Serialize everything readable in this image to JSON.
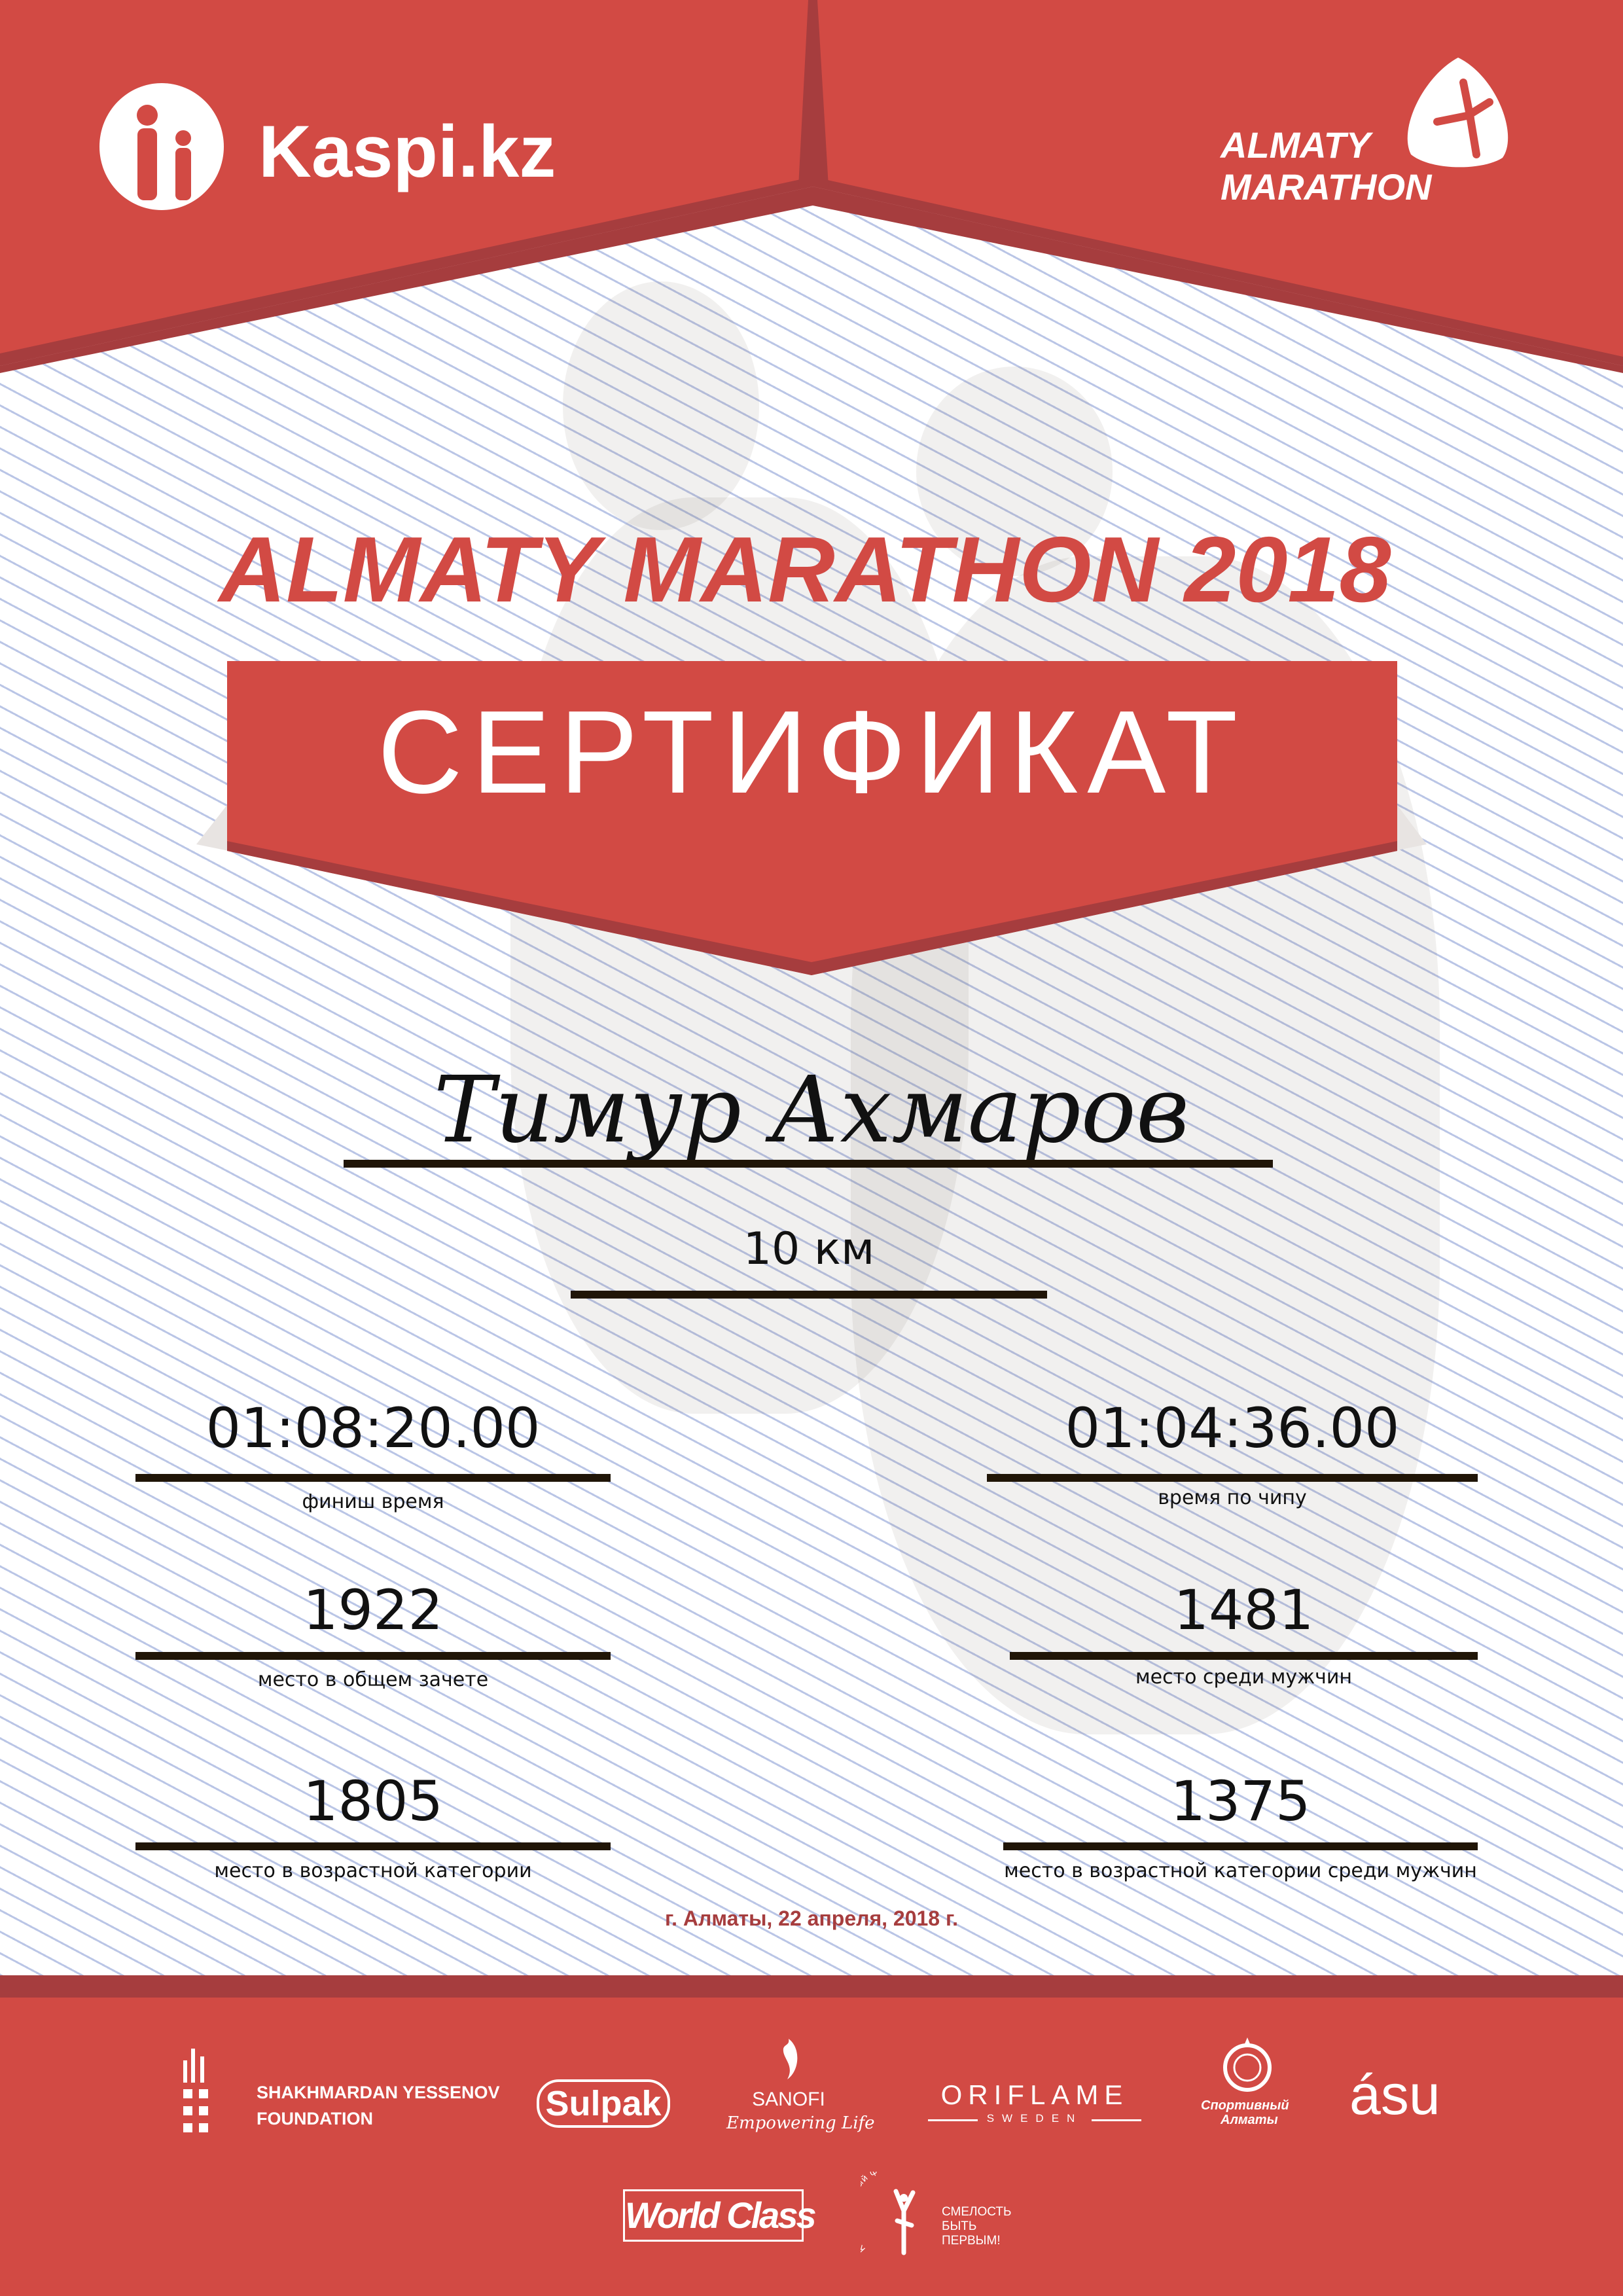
{
  "colors": {
    "brand_red": "#d24a44",
    "dark_red": "#a63d3e",
    "text": "#111111",
    "rule": "#201507"
  },
  "header": {
    "left_logo": {
      "text": "Kaspi.kz",
      "icon": "kaspi-people-icon"
    },
    "right_logo": {
      "line1": "ALMATY",
      "line2": "MARATHON",
      "icon": "runner-icon"
    }
  },
  "title": "ALMATY MARATHON 2018",
  "banner": "СЕРТИФИКАТ",
  "participant": {
    "name": "Тимур Ахмаров",
    "distance": "10 км"
  },
  "stats": [
    {
      "value": "01:08:20.00",
      "label": "финиш время"
    },
    {
      "value": "01:04:36.00",
      "label": "время по чипу"
    },
    {
      "value": "1922",
      "label": "место в общем зачете"
    },
    {
      "value": "1481",
      "label": "место среди мужчин"
    },
    {
      "value": "1805",
      "label": "место в возрастной категории"
    },
    {
      "value": "1375",
      "label": "место в возрастной категории среди мужчин"
    }
  ],
  "date_place": "г. Алматы, 22 апреля, 2018 г.",
  "sponsors": {
    "shakhmardan": {
      "line1": "SHAKHMARDAN YESSENOV",
      "line2": "FOUNDATION"
    },
    "sulpak": "Sulpak",
    "sanofi": {
      "name": "SANOFI",
      "tagline": "Empowering Life"
    },
    "oriflame": {
      "name": "ORIFLAME",
      "sub": "SWEDEN"
    },
    "sport_almaty": {
      "line1": "Спортивный",
      "line2": "Алматы"
    },
    "asu": "ásu",
    "worldclass": "World Class",
    "fund": {
      "arc": "Корпоративный фонд",
      "line1": "СМЕЛОСТЬ",
      "line2": "БЫТЬ",
      "line3": "ПЕРВЫМ!"
    }
  }
}
